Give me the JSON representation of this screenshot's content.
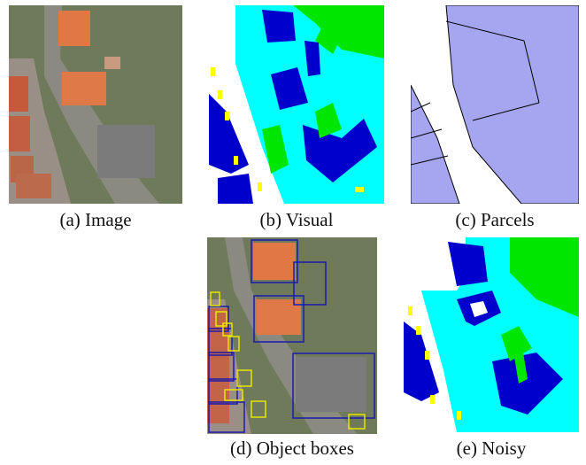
{
  "panels": {
    "image": {
      "caption": "(a) Image"
    },
    "visual": {
      "caption": "(b) Visual"
    },
    "parcels": {
      "caption": "(c) Parcels"
    },
    "boxes": {
      "caption": "(d) Object boxes"
    },
    "noisy": {
      "caption": "(e) Noisy"
    }
  },
  "colors": {
    "building": "#0000cc",
    "impervious": "#00ffff",
    "vegetation": "#00e600",
    "car": "#ffff00",
    "road": "#ffffff",
    "parcel_fill": "#a6a6f0",
    "box_building": "#1a1aaa",
    "box_car": "#e6e600"
  }
}
